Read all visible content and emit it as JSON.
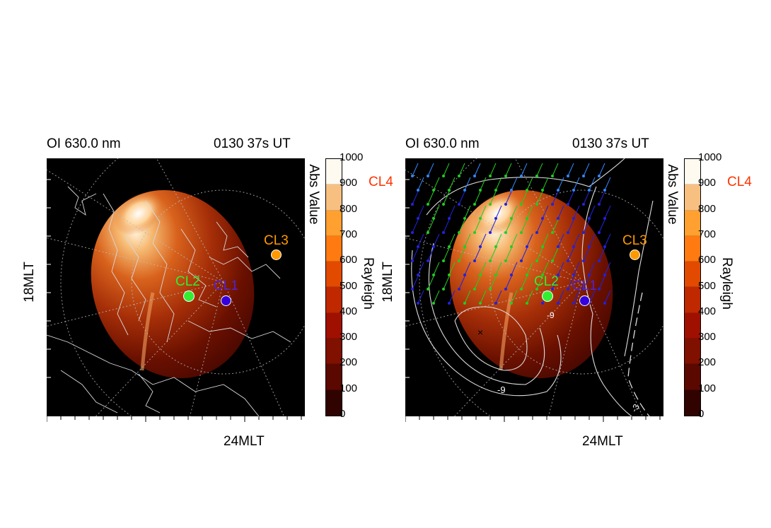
{
  "panels": [
    {
      "title_left": "OI 630.0 nm",
      "title_right": "0130 37s UT",
      "xlabel": "24MLT",
      "ylabel_left": "18MLT",
      "cbar_label_top": "Abs Value",
      "cbar_label_side": "Rayleigh",
      "cl4_label": "CL4",
      "markers": [
        {
          "name": "CL2",
          "color": "#33ee33",
          "label_color": "#33ee33"
        },
        {
          "name": "CL1",
          "color": "#3300dd",
          "label_color": "#5522cc"
        },
        {
          "name": "CL3",
          "color": "#ff9900",
          "label_color": "#ff9900"
        }
      ]
    },
    {
      "title_left": "OI 630.0 nm",
      "title_right": "0130 37s UT",
      "xlabel": "24MLT",
      "ylabel_left": "18MLT",
      "cbar_label_top": "Abs Value",
      "cbar_label_side": "Rayleigh",
      "cl4_label": "CL4",
      "contour_labels": [
        "-9",
        "-9",
        "-3"
      ],
      "markers": [
        {
          "name": "CL2",
          "color": "#33ee33",
          "label_color": "#33ee33"
        },
        {
          "name": "CL1",
          "color": "#3300dd",
          "label_color": "#5522cc"
        },
        {
          "name": "CL3",
          "color": "#ff9900",
          "label_color": "#ff9900"
        }
      ]
    }
  ],
  "colorbar": {
    "ticks": [
      "1000",
      "900",
      "800",
      "700",
      "600",
      "500",
      "400",
      "300",
      "200",
      "100",
      "0"
    ],
    "colors": [
      "#fefaf0",
      "#f8c080",
      "#ffa030",
      "#ff7a10",
      "#e24a00",
      "#c02800",
      "#a01000",
      "#801000",
      "#5a0800",
      "#300300"
    ]
  },
  "palette": {
    "aurora_bright": "#ffe9c0",
    "aurora_mid": "#e07020",
    "aurora_dark": "#6a1000",
    "cl4_color": "#ff3300"
  }
}
